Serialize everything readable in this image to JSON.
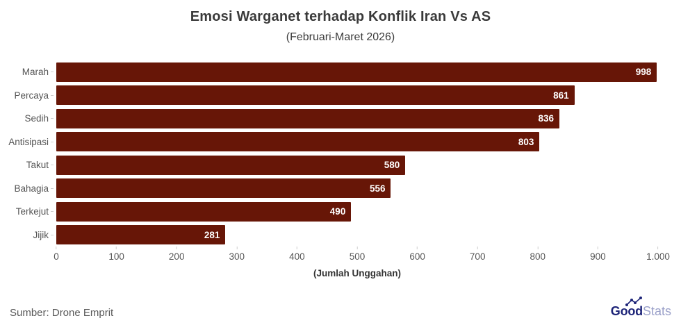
{
  "chart_data": {
    "type": "bar",
    "orientation": "horizontal",
    "title": "Emosi Warganet terhadap Konflik Iran Vs AS",
    "subtitle": "(Februari-Maret 2026)",
    "categories": [
      "Marah",
      "Percaya",
      "Sedih",
      "Antisipasi",
      "Takut",
      "Bahagia",
      "Terkejut",
      "Jijik"
    ],
    "values": [
      998,
      861,
      836,
      803,
      580,
      556,
      490,
      281
    ],
    "value_labels": [
      "998",
      "861",
      "836",
      "803",
      "580",
      "556",
      "490",
      "281"
    ],
    "xlabel": "(Jumlah Unggahan)",
    "xlim": [
      0,
      1000
    ],
    "xticks": [
      0,
      100,
      200,
      300,
      400,
      500,
      600,
      700,
      800,
      900,
      1000
    ],
    "xtick_labels": [
      "0",
      "100",
      "200",
      "300",
      "400",
      "500",
      "600",
      "700",
      "800",
      "900",
      "1.000"
    ],
    "bar_color": "#671607",
    "value_label_color": "#ffffff",
    "grid": false,
    "legend": null
  },
  "footer": {
    "source": "Sumber: Drone Emprit",
    "logo": {
      "bold": "Good",
      "light": "Stats",
      "bold_color": "#1d2478",
      "light_color": "#9aa0c9",
      "trend_icon": "trend-line-icon"
    }
  }
}
